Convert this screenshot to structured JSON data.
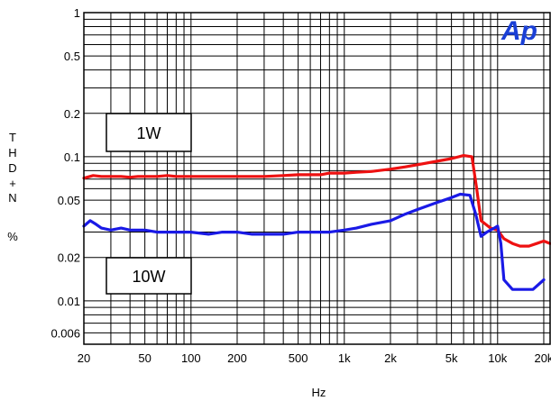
{
  "chart_data": {
    "type": "line",
    "title": "",
    "xlabel": "Hz",
    "ylabel": "THD+N %",
    "ylabel_chars": [
      "T",
      "H",
      "D",
      "+",
      "N",
      "",
      "%"
    ],
    "x_scale": "log",
    "y_scale": "log",
    "xlim": [
      20,
      22000
    ],
    "ylim": [
      0.005,
      1
    ],
    "x_ticks": [
      20,
      50,
      100,
      200,
      500,
      1000,
      2000,
      5000,
      10000,
      20000
    ],
    "x_tick_labels": [
      "20",
      "50",
      "100",
      "200",
      "500",
      "1k",
      "2k",
      "5k",
      "10k",
      "20k"
    ],
    "y_ticks": [
      1,
      0.5,
      0.2,
      0.1,
      0.05,
      0.02,
      0.01,
      0.006
    ],
    "y_tick_labels": [
      "1",
      "0.5",
      "0.2",
      "0.1",
      "0.05",
      "0.02",
      "0.01",
      "0.006"
    ],
    "grid": true,
    "logo_text": "Ap",
    "logo_color": "#1a3fd6",
    "annotations": [
      {
        "text": "1W",
        "series": "1W"
      },
      {
        "text": "10W",
        "series": "10W"
      }
    ],
    "series": [
      {
        "name": "1W",
        "color": "#ee1111",
        "points": [
          [
            20,
            0.071
          ],
          [
            23,
            0.074
          ],
          [
            26,
            0.073
          ],
          [
            30,
            0.073
          ],
          [
            35,
            0.073
          ],
          [
            40,
            0.072
          ],
          [
            45,
            0.073
          ],
          [
            50,
            0.073
          ],
          [
            60,
            0.073
          ],
          [
            70,
            0.074
          ],
          [
            80,
            0.073
          ],
          [
            100,
            0.073
          ],
          [
            130,
            0.073
          ],
          [
            160,
            0.073
          ],
          [
            200,
            0.073
          ],
          [
            250,
            0.073
          ],
          [
            300,
            0.073
          ],
          [
            400,
            0.074
          ],
          [
            500,
            0.075
          ],
          [
            600,
            0.075
          ],
          [
            700,
            0.075
          ],
          [
            800,
            0.077
          ],
          [
            1000,
            0.077
          ],
          [
            1200,
            0.078
          ],
          [
            1500,
            0.079
          ],
          [
            2000,
            0.082
          ],
          [
            2500,
            0.085
          ],
          [
            3000,
            0.088
          ],
          [
            4000,
            0.093
          ],
          [
            5000,
            0.097
          ],
          [
            6000,
            0.102
          ],
          [
            6800,
            0.1
          ],
          [
            7300,
            0.06
          ],
          [
            7800,
            0.036
          ],
          [
            9000,
            0.032
          ],
          [
            10000,
            0.031
          ],
          [
            11000,
            0.027
          ],
          [
            12500,
            0.025
          ],
          [
            14000,
            0.024
          ],
          [
            16000,
            0.024
          ],
          [
            18000,
            0.025
          ],
          [
            20000,
            0.026
          ],
          [
            22000,
            0.025
          ]
        ]
      },
      {
        "name": "10W",
        "color": "#1a1ae6",
        "points": [
          [
            20,
            0.033
          ],
          [
            22,
            0.036
          ],
          [
            24,
            0.034
          ],
          [
            26,
            0.032
          ],
          [
            30,
            0.031
          ],
          [
            35,
            0.032
          ],
          [
            40,
            0.031
          ],
          [
            45,
            0.031
          ],
          [
            50,
            0.031
          ],
          [
            60,
            0.03
          ],
          [
            80,
            0.03
          ],
          [
            100,
            0.03
          ],
          [
            130,
            0.029
          ],
          [
            160,
            0.03
          ],
          [
            200,
            0.03
          ],
          [
            250,
            0.029
          ],
          [
            300,
            0.029
          ],
          [
            400,
            0.029
          ],
          [
            500,
            0.03
          ],
          [
            600,
            0.03
          ],
          [
            700,
            0.03
          ],
          [
            800,
            0.03
          ],
          [
            1000,
            0.031
          ],
          [
            1200,
            0.032
          ],
          [
            1500,
            0.034
          ],
          [
            2000,
            0.036
          ],
          [
            2500,
            0.04
          ],
          [
            3000,
            0.043
          ],
          [
            4000,
            0.048
          ],
          [
            5000,
            0.052
          ],
          [
            5700,
            0.055
          ],
          [
            6600,
            0.054
          ],
          [
            7200,
            0.04
          ],
          [
            7800,
            0.028
          ],
          [
            8500,
            0.03
          ],
          [
            9500,
            0.032
          ],
          [
            10000,
            0.033
          ],
          [
            10500,
            0.025
          ],
          [
            11000,
            0.014
          ],
          [
            12500,
            0.012
          ],
          [
            14000,
            0.012
          ],
          [
            17000,
            0.012
          ],
          [
            20000,
            0.014
          ]
        ]
      }
    ]
  }
}
